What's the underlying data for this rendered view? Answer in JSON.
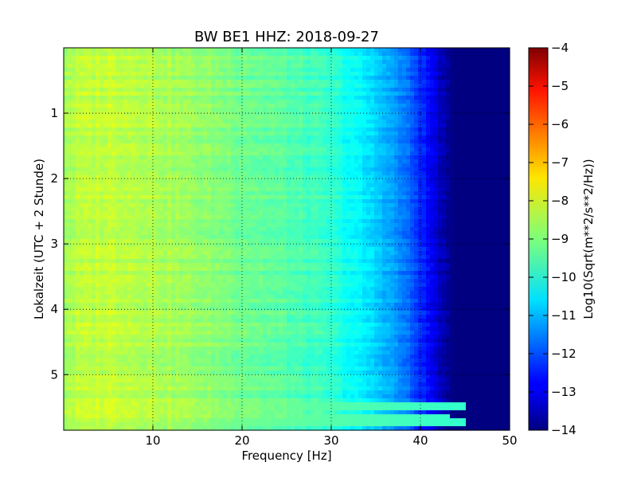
{
  "chart_data": {
    "type": "heatmap",
    "title": "BW BE1 HHZ: 2018-09-27",
    "xlabel": "Frequency [Hz]",
    "ylabel": "Lokalzeit (UTC + 2 Stunde)",
    "xlim": [
      0,
      50
    ],
    "ylim": [
      5.85,
      0
    ],
    "x_ticks": [
      10,
      20,
      30,
      40,
      50
    ],
    "y_ticks": [
      1,
      2,
      3,
      4,
      5
    ],
    "grid": true,
    "colorbar": {
      "label": "Log10(Sqrt(m**2/s**2/Hz))",
      "range": [
        -14,
        -4
      ],
      "ticks": [
        -4,
        -5,
        -6,
        -7,
        -8,
        -9,
        -10,
        -11,
        -12,
        -13,
        -14
      ],
      "colormap": "jet"
    },
    "frequency_profile": {
      "x": [
        0,
        2,
        5,
        10,
        15,
        20,
        25,
        30,
        33,
        36,
        38,
        40,
        42,
        43,
        44,
        50
      ],
      "values": [
        -8.6,
        -8.4,
        -8.3,
        -8.5,
        -8.8,
        -9.1,
        -9.4,
        -9.8,
        -10.3,
        -10.9,
        -11.5,
        -12.3,
        -13.2,
        -13.8,
        -14,
        -14
      ]
    },
    "highlight_bands": [
      {
        "time": 5.47,
        "values_to_hz": 45
      },
      {
        "time": 5.65,
        "values_to_hz": 43
      },
      {
        "time": 5.72,
        "values_to_hz": 45
      }
    ]
  }
}
